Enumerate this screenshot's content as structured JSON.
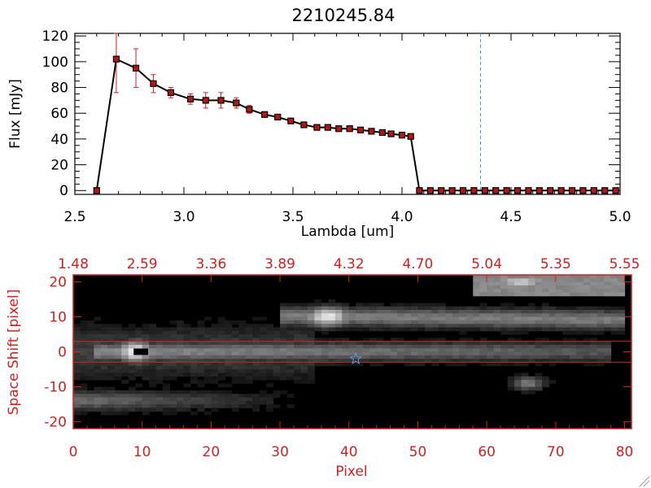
{
  "colors": {
    "axis_black": "#000000",
    "axis_red": "#cc2222",
    "errorbar": "#cc2222",
    "marker_fill": "#b01818",
    "dashed_line": "#4a90d9",
    "star": "#5a9be0",
    "image_bg": "#000000"
  },
  "chart_data": [
    {
      "type": "line",
      "title": "2210245.84",
      "xlabel": "Lambda [um]",
      "ylabel": "Flux [mJy]",
      "xlim": [
        2.5,
        5.0
      ],
      "ylim": [
        -3,
        122
      ],
      "x_ticks": [
        2.5,
        3.0,
        3.5,
        4.0,
        4.5,
        5.0
      ],
      "x_tick_labels": [
        "2.5",
        "3.0",
        "3.5",
        "4.0",
        "4.5",
        "5.0"
      ],
      "y_ticks": [
        0,
        20,
        40,
        60,
        80,
        100,
        120
      ],
      "y_tick_labels": [
        "0",
        "20",
        "40",
        "60",
        "80",
        "100",
        "120"
      ],
      "vline_x": 4.36,
      "series": [
        {
          "name": "flux",
          "x": [
            2.6,
            2.69,
            2.78,
            2.86,
            2.94,
            3.03,
            3.1,
            3.17,
            3.24,
            3.3,
            3.37,
            3.43,
            3.49,
            3.55,
            3.61,
            3.66,
            3.71,
            3.76,
            3.81,
            3.86,
            3.91,
            3.95,
            4.0,
            4.04,
            4.08,
            4.13,
            4.18,
            4.23,
            4.28,
            4.33,
            4.38,
            4.43,
            4.48,
            4.53,
            4.58,
            4.63,
            4.68,
            4.73,
            4.78,
            4.83,
            4.88,
            4.93,
            4.98
          ],
          "y": [
            0,
            102,
            95,
            83,
            76,
            71,
            70,
            70,
            68,
            63,
            59,
            57,
            54,
            51,
            49,
            49,
            48,
            48,
            47,
            46,
            45,
            44,
            43,
            42,
            0,
            0,
            0,
            0,
            0,
            0,
            0,
            0,
            0,
            0,
            0,
            0,
            0,
            0,
            0,
            0,
            0,
            0,
            0
          ],
          "err": [
            0,
            26,
            15,
            7,
            4,
            4,
            6,
            6,
            4,
            3,
            2,
            2,
            1,
            1,
            1,
            1,
            1,
            1,
            1,
            1,
            1,
            1,
            1,
            1,
            0,
            0,
            0,
            0,
            0,
            0,
            0,
            0,
            0,
            0,
            0,
            0,
            0,
            0,
            0,
            0,
            0,
            0,
            0
          ]
        }
      ]
    },
    {
      "type": "heatmap",
      "xlabel": "Pixel",
      "ylabel": "Space Shift [pixel]",
      "xlim": [
        0,
        81
      ],
      "ylim": [
        -22,
        22
      ],
      "x_ticks": [
        0,
        10,
        20,
        30,
        40,
        50,
        60,
        70,
        80
      ],
      "x_tick_labels": [
        "0",
        "10",
        "20",
        "30",
        "40",
        "50",
        "60",
        "70",
        "80"
      ],
      "y_ticks": [
        -20,
        -10,
        0,
        10,
        20
      ],
      "y_tick_labels": [
        "-20",
        "-10",
        "0",
        "10",
        "20"
      ],
      "top_tick_labels": [
        "1.48",
        "2.59",
        "3.36",
        "3.89",
        "4.32",
        "4.70",
        "5.04",
        "5.35",
        "5.55"
      ],
      "hlines_y": [
        3,
        -3
      ],
      "marker_black": {
        "x": 9,
        "y": 0
      },
      "star_marker": {
        "x": 41,
        "y": -2
      },
      "sources": [
        {
          "x": 9,
          "y": 0,
          "intensity": 1.0
        },
        {
          "x": 36,
          "y": 10,
          "intensity": 0.95
        },
        {
          "x": 66,
          "y": 20,
          "intensity": 0.85
        },
        {
          "x": 66,
          "y": -9,
          "intensity": 0.5
        },
        {
          "x": 40,
          "y": -2,
          "intensity": 0.45
        }
      ]
    }
  ]
}
